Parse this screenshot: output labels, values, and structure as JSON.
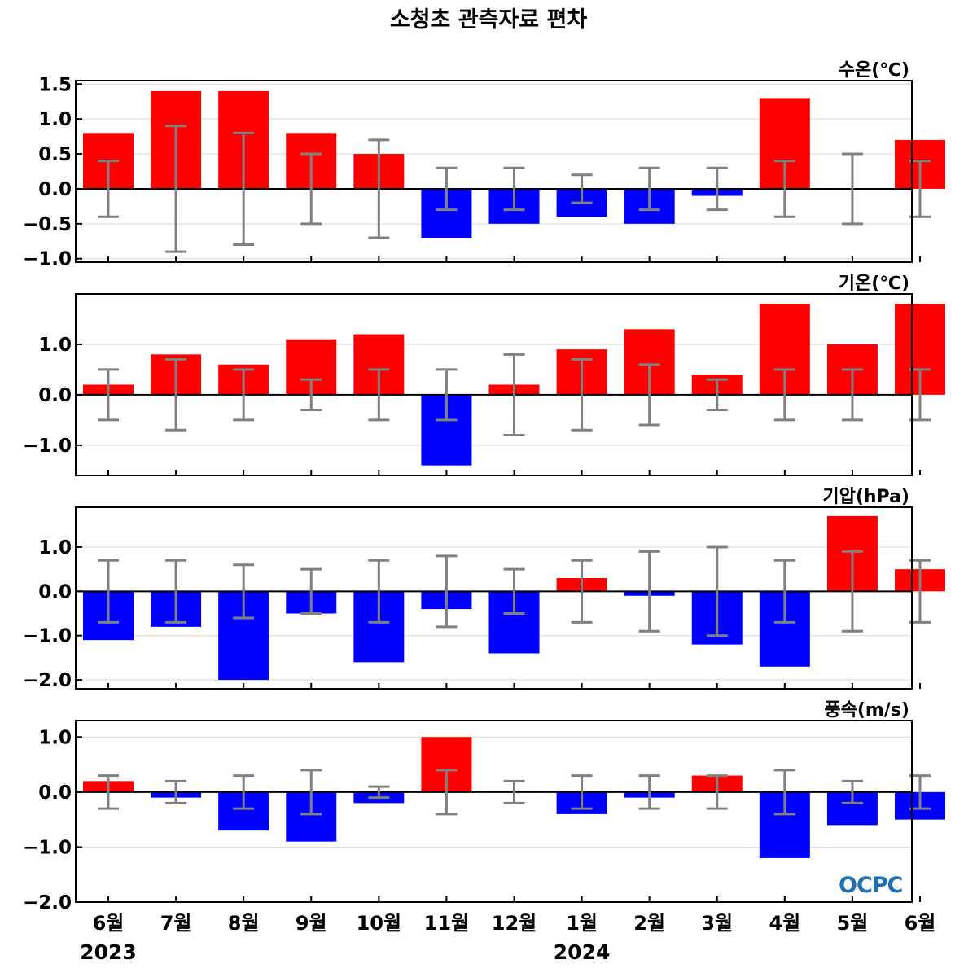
{
  "title": "소청초 관측자료 편차",
  "logo_text": "OCPC",
  "colors": {
    "positive": "#ff0000",
    "negative": "#0000ff",
    "error_bar": "#808080",
    "grid": "#d9d9d9"
  },
  "chart_data": [
    {
      "type": "bar",
      "title": "수온(℃)",
      "categories": [
        "6월",
        "7월",
        "8월",
        "9월",
        "10월",
        "11월",
        "12월",
        "1월",
        "2월",
        "3월",
        "4월",
        "5월",
        "6월"
      ],
      "values": [
        0.8,
        1.4,
        1.4,
        0.8,
        0.5,
        -0.7,
        -0.5,
        -0.4,
        -0.5,
        -0.1,
        1.3,
        0.0,
        0.7
      ],
      "error_bars": [
        0.4,
        0.9,
        0.8,
        0.5,
        0.7,
        0.3,
        0.3,
        0.2,
        0.3,
        0.3,
        0.4,
        0.5,
        0.4
      ],
      "ylim": [
        -1.05,
        1.55
      ],
      "yticks": [
        -1.0,
        -0.5,
        0.0,
        0.5,
        1.0,
        1.5
      ],
      "ytick_labels": [
        "−1.0",
        "−0.5",
        "0.0",
        "0.5",
        "1.0",
        "1.5"
      ],
      "grid": true
    },
    {
      "type": "bar",
      "title": "기온(℃)",
      "categories": [
        "6월",
        "7월",
        "8월",
        "9월",
        "10월",
        "11월",
        "12월",
        "1월",
        "2월",
        "3월",
        "4월",
        "5월",
        "6월"
      ],
      "values": [
        0.2,
        0.8,
        0.6,
        1.1,
        1.2,
        -1.4,
        0.2,
        0.9,
        1.3,
        0.4,
        1.8,
        1.0,
        1.8
      ],
      "error_bars": [
        0.5,
        0.7,
        0.5,
        0.3,
        0.5,
        0.5,
        0.8,
        0.7,
        0.6,
        0.3,
        0.5,
        0.5,
        0.5
      ],
      "ylim": [
        -1.6,
        2.0
      ],
      "yticks": [
        -1.0,
        0.0,
        1.0
      ],
      "ytick_labels": [
        "−1.0",
        "0.0",
        "1.0"
      ],
      "grid": true
    },
    {
      "type": "bar",
      "title": "기압(hPa)",
      "categories": [
        "6월",
        "7월",
        "8월",
        "9월",
        "10월",
        "11월",
        "12월",
        "1월",
        "2월",
        "3월",
        "4월",
        "5월",
        "6월"
      ],
      "values": [
        -1.1,
        -0.8,
        -2.0,
        -0.5,
        -1.6,
        -0.4,
        -1.4,
        0.3,
        -0.1,
        -1.2,
        -1.7,
        1.7,
        0.5
      ],
      "error_bars": [
        0.7,
        0.7,
        0.6,
        0.5,
        0.7,
        0.8,
        0.5,
        0.7,
        0.9,
        1.0,
        0.7,
        0.9,
        0.7
      ],
      "ylim": [
        -2.2,
        1.9
      ],
      "yticks": [
        -2.0,
        -1.0,
        0.0,
        1.0
      ],
      "ytick_labels": [
        "−2.0",
        "−1.0",
        "0.0",
        "1.0"
      ],
      "grid": true
    },
    {
      "type": "bar",
      "title": "풍속(m/s)",
      "categories": [
        "6월",
        "7월",
        "8월",
        "9월",
        "10월",
        "11월",
        "12월",
        "1월",
        "2월",
        "3월",
        "4월",
        "5월",
        "6월"
      ],
      "values": [
        0.2,
        -0.1,
        -0.7,
        -0.9,
        -0.2,
        1.0,
        0.0,
        -0.4,
        -0.1,
        0.3,
        -1.2,
        -0.6,
        -0.5
      ],
      "error_bars": [
        0.3,
        0.2,
        0.3,
        0.4,
        0.1,
        0.4,
        0.2,
        0.3,
        0.3,
        0.3,
        0.4,
        0.2,
        0.3
      ],
      "ylim": [
        -2.0,
        1.3
      ],
      "yticks": [
        -2.0,
        -1.0,
        0.0,
        1.0
      ],
      "ytick_labels": [
        "−2.0",
        "−1.0",
        "0.0",
        "1.0"
      ],
      "grid": true
    }
  ],
  "x_axis": {
    "month_labels": [
      "6월",
      "7월",
      "8월",
      "9월",
      "10월",
      "11월",
      "12월",
      "1월",
      "2월",
      "3월",
      "4월",
      "5월",
      "6월"
    ],
    "year_labels": [
      {
        "text": "2023",
        "index": 0
      },
      {
        "text": "2024",
        "index": 7
      }
    ]
  }
}
